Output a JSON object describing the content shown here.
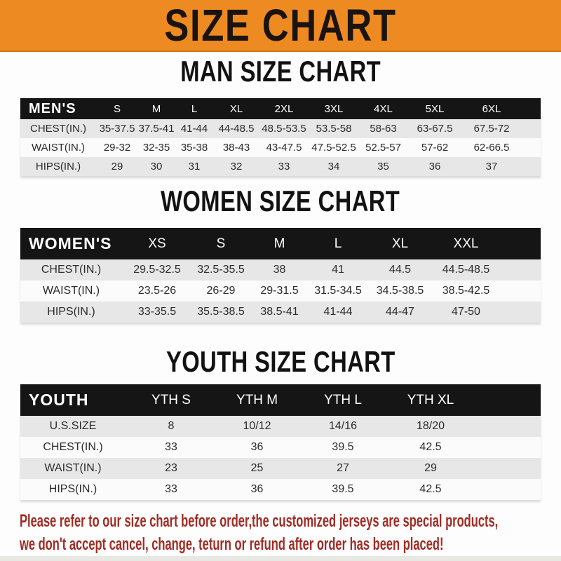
{
  "banner": {
    "title": "SIZE CHART"
  },
  "sections": [
    {
      "heading": "MAN SIZE CHART",
      "header_label": "MEN'S",
      "columns": [
        "S",
        "M",
        "L",
        "XL",
        "2XL",
        "3XL",
        "4XL",
        "5XL",
        "6XL"
      ],
      "rows": [
        {
          "label": "CHEST(IN.)",
          "values": [
            "35-37.5",
            "37.5-41",
            "41-44",
            "44-48.5",
            "48.5-53.5",
            "53.5-58",
            "58-63",
            "63-67.5",
            "67.5-72"
          ]
        },
        {
          "label": "WAIST(IN.)",
          "values": [
            "29-32",
            "32-35",
            "35-38",
            "38-43",
            "43-47.5",
            "47.5-52.5",
            "52.5-57",
            "57-62",
            "62-66.5"
          ]
        },
        {
          "label": "HIPS(IN.)",
          "values": [
            "29",
            "30",
            "31",
            "32",
            "33",
            "34",
            "35",
            "36",
            "37"
          ]
        }
      ]
    },
    {
      "heading": "WOMEN SIZE CHART",
      "header_label": "WOMEN'S",
      "columns": [
        "XS",
        "S",
        "M",
        "L",
        "XL",
        "XXL"
      ],
      "rows": [
        {
          "label": "CHEST(IN.)",
          "values": [
            "29.5-32.5",
            "32.5-35.5",
            "38",
            "41",
            "44.5",
            "44.5-48.5"
          ]
        },
        {
          "label": "WAIST(IN.)",
          "values": [
            "23.5-26",
            "26-29",
            "29-31.5",
            "31.5-34.5",
            "34.5-38.5",
            "38.5-42.5"
          ]
        },
        {
          "label": "HIPS(IN.)",
          "values": [
            "33-35.5",
            "35.5-38.5",
            "38.5-41",
            "41-44",
            "44-47",
            "47-50"
          ]
        }
      ]
    },
    {
      "heading": "YOUTH SIZE CHART",
      "header_label": "YOUTH",
      "columns": [
        "YTH S",
        "YTH M",
        "YTH L",
        "YTH XL"
      ],
      "rows": [
        {
          "label": "U.S.SIZE",
          "values": [
            "8",
            "10/12",
            "14/16",
            "18/20"
          ]
        },
        {
          "label": "CHEST(IN.)",
          "values": [
            "33",
            "36",
            "39.5",
            "42.5"
          ]
        },
        {
          "label": "WAIST(IN.)",
          "values": [
            "23",
            "25",
            "27",
            "29"
          ]
        },
        {
          "label": "HIPS(IN.)",
          "values": [
            "33",
            "36",
            "39.5",
            "42.5"
          ]
        }
      ]
    }
  ],
  "disclaimer": {
    "line1": "Please refer to our size chart before order,the customized jerseys are special products,",
    "line2": "we don't accept cancel, change, teturn or refund after order has been placed!"
  },
  "palette": {
    "banner_bg": "#EE8A22",
    "banner_text": "#1A1410",
    "header_bar": "#151515",
    "header_text": "#FFFFFF",
    "row_stripe": "#E7E7E7",
    "heading_text": "#121212",
    "disclaimer_red": "#A02C24",
    "footer_strip": "#E8E8E3"
  }
}
